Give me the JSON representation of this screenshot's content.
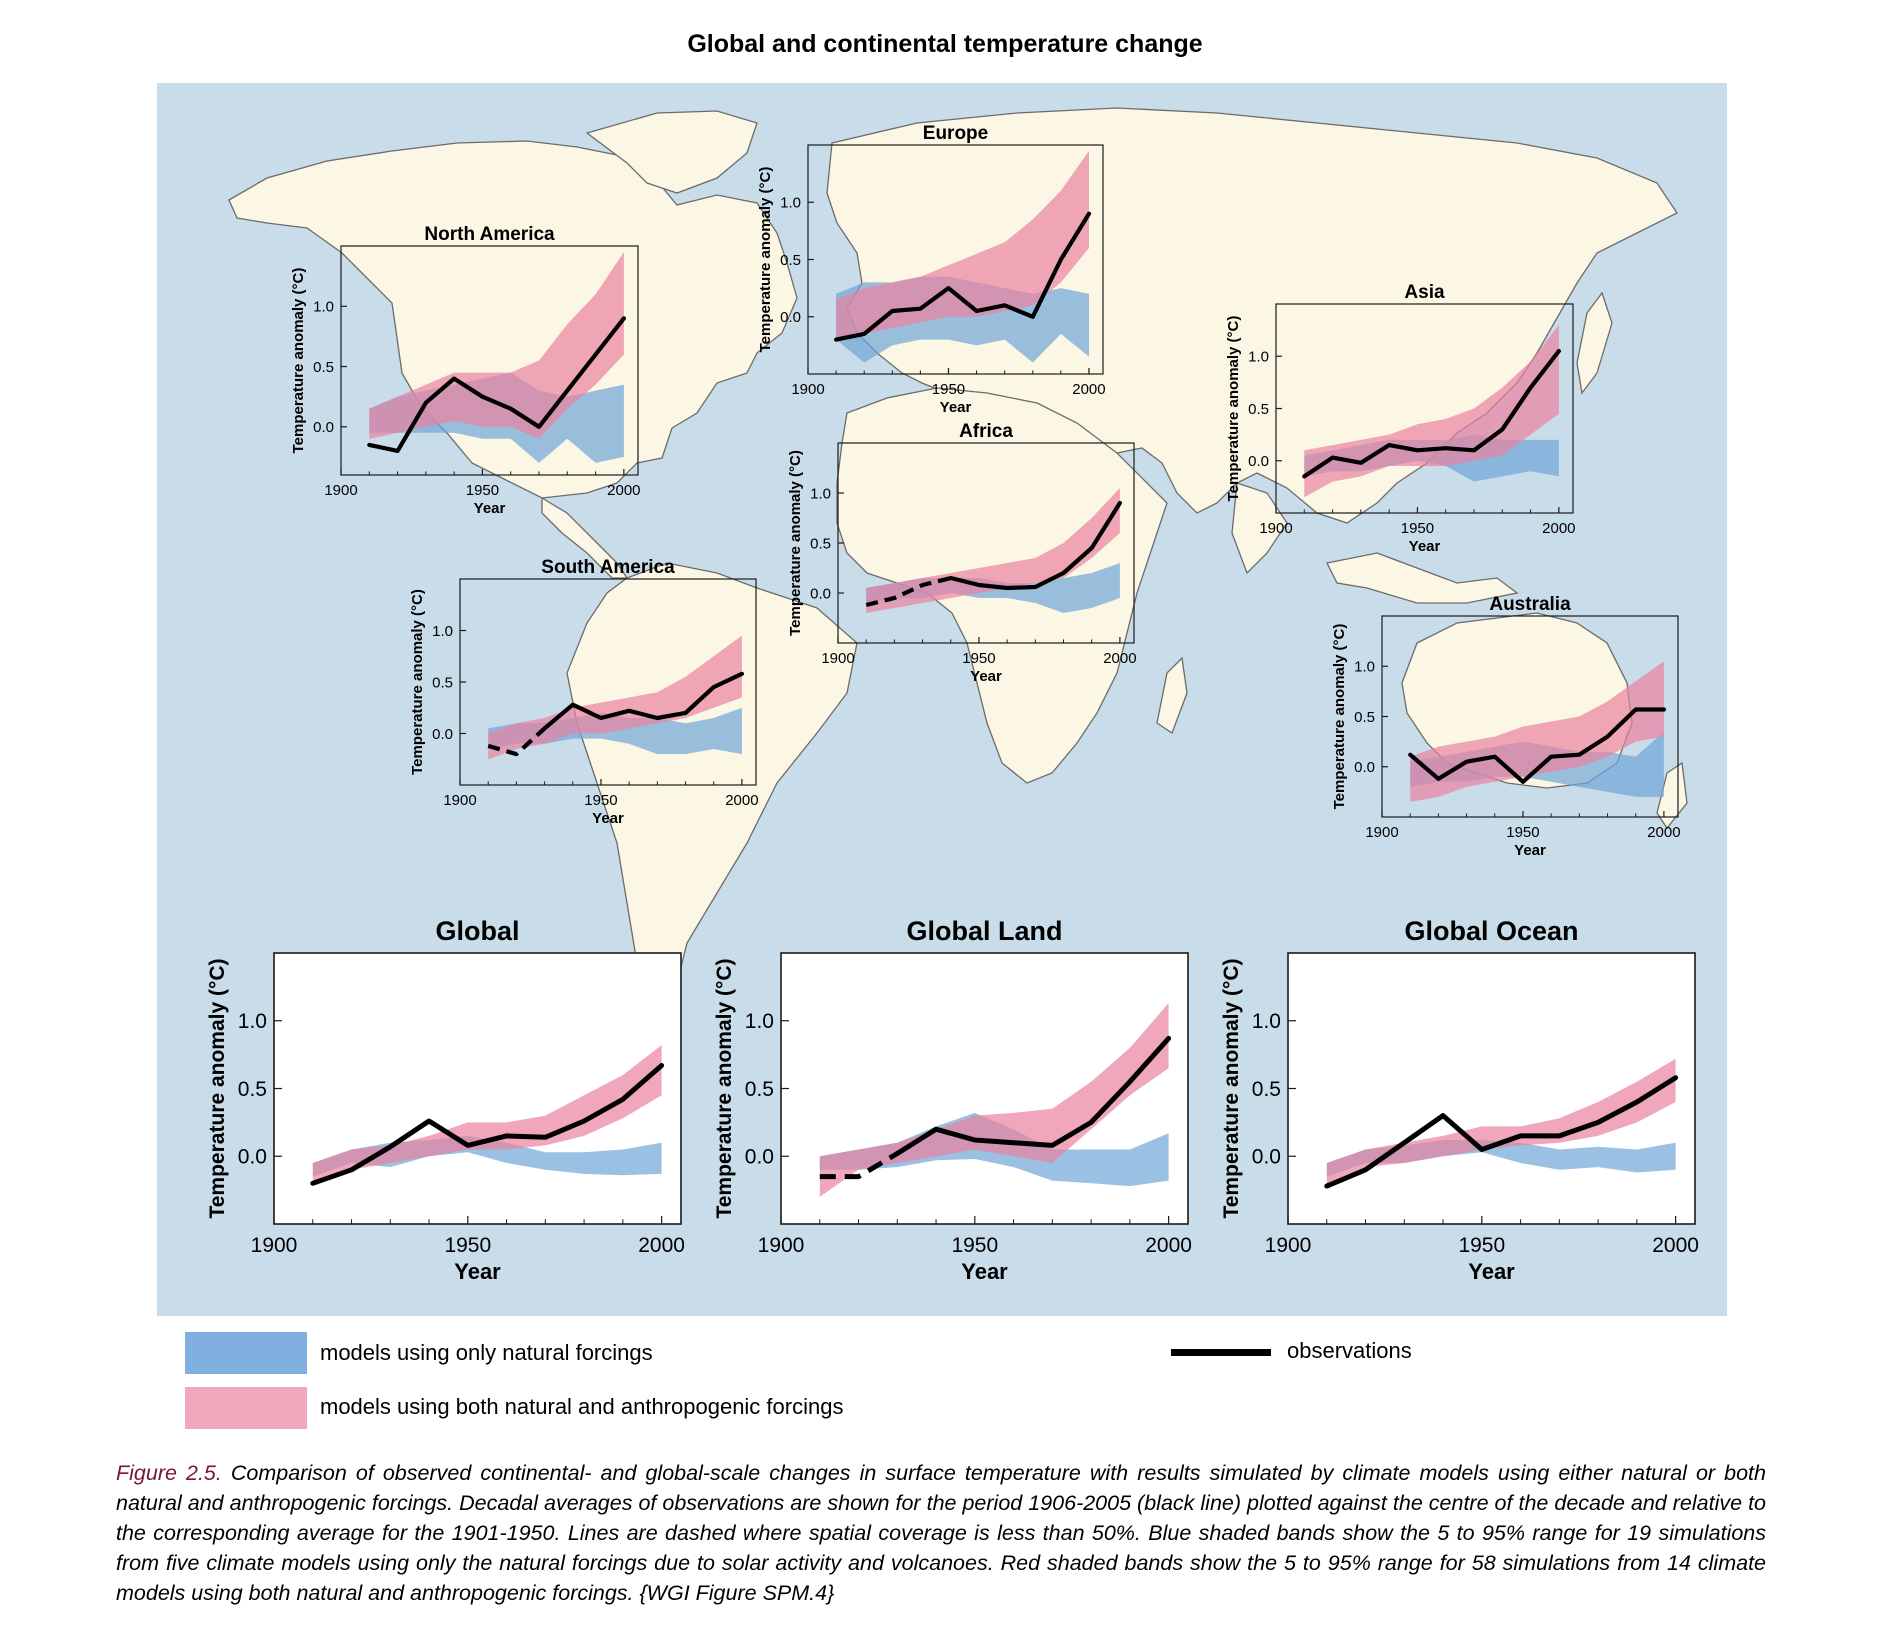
{
  "figure_title": "Global and continental temperature change",
  "colors": {
    "title": "#7a1537",
    "ocean": "#c9dcea",
    "land": "#fbf7e4",
    "natural_band": "#6fa5d9",
    "anthro_band": "#e9829e",
    "observations": "#000000"
  },
  "legend": {
    "natural": "models using only natural forcings",
    "anthro": "models using both natural and anthropogenic forcings",
    "observations": "observations"
  },
  "caption": {
    "label": "Figure 2.5.",
    "text": " Comparison of observed continental- and global-scale changes in surface temperature with results simulated by climate models using either natural or both natural and anthropogenic forcings. Decadal averages of observations are shown for the period 1906-2005 (black line) plotted against the centre of the decade and relative to the corresponding average for the 1901-1950. Lines are dashed where spatial coverage is less than 50%. Blue shaded bands show the 5 to 95% range for 19 simulations from five climate models using only the natural forcings due to solar activity and volcanoes. Red shaded bands show the 5 to 95% range for 58 simulations from 14 climate models using both natural and anthropogenic forcings. {WGI Figure SPM.4}"
  },
  "chart_data": [
    {
      "id": "north-america",
      "type": "area",
      "title": "North America",
      "xlabel": "Year",
      "ylabel": "Temperature anomaly (°C)",
      "xlim": [
        1900,
        2005
      ],
      "ylim": [
        -0.4,
        1.5
      ],
      "xticks": [
        "1900",
        "1950",
        "2000"
      ],
      "yticks": [
        "0.0",
        "0.5",
        "1.0"
      ],
      "x": [
        1910,
        1920,
        1930,
        1940,
        1950,
        1960,
        1970,
        1980,
        1990,
        2000
      ],
      "observations": [
        -0.15,
        -0.2,
        0.2,
        0.4,
        0.25,
        0.15,
        0.0,
        0.3,
        0.6,
        0.9
      ],
      "dashed_until": 1910,
      "natural": {
        "low": [
          -0.05,
          -0.05,
          -0.05,
          -0.05,
          -0.1,
          -0.1,
          -0.3,
          -0.1,
          -0.3,
          -0.25
        ],
        "high": [
          0.15,
          0.25,
          0.3,
          0.35,
          0.4,
          0.45,
          0.3,
          0.25,
          0.3,
          0.35
        ]
      },
      "anthro": {
        "low": [
          -0.1,
          -0.05,
          0.0,
          0.05,
          0.0,
          0.0,
          -0.1,
          0.15,
          0.35,
          0.6
        ],
        "high": [
          0.15,
          0.25,
          0.35,
          0.45,
          0.45,
          0.45,
          0.55,
          0.85,
          1.1,
          1.45
        ]
      }
    },
    {
      "id": "europe",
      "type": "area",
      "title": "Europe",
      "xlabel": "Year",
      "ylabel": "Temperature anomaly (°C)",
      "xlim": [
        1900,
        2005
      ],
      "ylim": [
        -0.5,
        1.5
      ],
      "xticks": [
        "1900",
        "1950",
        "2000"
      ],
      "yticks": [
        "0.0",
        "0.5",
        "1.0"
      ],
      "x": [
        1910,
        1920,
        1930,
        1940,
        1950,
        1960,
        1970,
        1980,
        1990,
        2000
      ],
      "observations": [
        -0.2,
        -0.15,
        0.05,
        0.07,
        0.25,
        0.05,
        0.1,
        0.0,
        0.5,
        0.9
      ],
      "dashed_until": 1910,
      "natural": {
        "low": [
          -0.2,
          -0.4,
          -0.25,
          -0.2,
          -0.2,
          -0.25,
          -0.2,
          -0.4,
          -0.15,
          -0.35
        ],
        "high": [
          0.2,
          0.3,
          0.3,
          0.35,
          0.35,
          0.3,
          0.25,
          0.2,
          0.25,
          0.2
        ]
      },
      "anthro": {
        "low": [
          -0.2,
          -0.15,
          -0.1,
          -0.05,
          0.0,
          0.0,
          0.05,
          0.1,
          0.3,
          0.6
        ],
        "high": [
          0.15,
          0.25,
          0.3,
          0.35,
          0.45,
          0.55,
          0.65,
          0.85,
          1.1,
          1.45
        ]
      }
    },
    {
      "id": "asia",
      "type": "area",
      "title": "Asia",
      "xlabel": "Year",
      "ylabel": "Temperature anomaly (°C)",
      "xlim": [
        1900,
        2005
      ],
      "ylim": [
        -0.5,
        1.5
      ],
      "xticks": [
        "1900",
        "1950",
        "2000"
      ],
      "yticks": [
        "0.0",
        "0.5",
        "1.0"
      ],
      "x": [
        1910,
        1920,
        1930,
        1940,
        1950,
        1960,
        1970,
        1980,
        1990,
        2000
      ],
      "observations": [
        -0.15,
        0.03,
        -0.02,
        0.15,
        0.1,
        0.12,
        0.1,
        0.3,
        0.7,
        1.05
      ],
      "dashed_until": 1910,
      "natural": {
        "low": [
          -0.15,
          -0.1,
          -0.1,
          -0.05,
          0.0,
          -0.05,
          -0.2,
          -0.15,
          -0.1,
          -0.15
        ],
        "high": [
          0.05,
          0.1,
          0.15,
          0.2,
          0.2,
          0.2,
          0.25,
          0.2,
          0.2,
          0.2
        ]
      },
      "anthro": {
        "low": [
          -0.35,
          -0.2,
          -0.15,
          -0.05,
          -0.05,
          -0.05,
          0.0,
          0.05,
          0.25,
          0.45
        ],
        "high": [
          0.1,
          0.15,
          0.2,
          0.25,
          0.35,
          0.4,
          0.5,
          0.7,
          0.95,
          1.3
        ]
      }
    },
    {
      "id": "africa",
      "type": "area",
      "title": "Africa",
      "xlabel": "Year",
      "ylabel": "Temperature anomaly (°C)",
      "xlim": [
        1900,
        2005
      ],
      "ylim": [
        -0.5,
        1.5
      ],
      "xticks": [
        "1900",
        "1950",
        "2000"
      ],
      "yticks": [
        "0.0",
        "0.5",
        "1.0"
      ],
      "x": [
        1910,
        1920,
        1930,
        1940,
        1950,
        1960,
        1970,
        1980,
        1990,
        2000
      ],
      "observations": [
        -0.12,
        -0.05,
        0.08,
        0.15,
        0.08,
        0.05,
        0.06,
        0.2,
        0.45,
        0.9
      ],
      "dashed_until": 1940,
      "natural": {
        "low": [
          -0.1,
          -0.05,
          -0.05,
          0.0,
          -0.05,
          -0.05,
          -0.1,
          -0.2,
          -0.15,
          -0.05
        ],
        "high": [
          0.05,
          0.1,
          0.15,
          0.15,
          0.15,
          0.1,
          0.1,
          0.15,
          0.2,
          0.3
        ]
      },
      "anthro": {
        "low": [
          -0.2,
          -0.15,
          -0.1,
          -0.05,
          0.0,
          0.05,
          0.1,
          0.15,
          0.35,
          0.6
        ],
        "high": [
          0.05,
          0.1,
          0.15,
          0.2,
          0.25,
          0.3,
          0.35,
          0.5,
          0.75,
          1.05
        ]
      }
    },
    {
      "id": "south-america",
      "type": "area",
      "title": "South America",
      "xlabel": "Year",
      "ylabel": "Temperature anomaly (°C)",
      "xlim": [
        1900,
        2005
      ],
      "ylim": [
        -0.5,
        1.5
      ],
      "xticks": [
        "1900",
        "1950",
        "2000"
      ],
      "yticks": [
        "0.0",
        "0.5",
        "1.0"
      ],
      "x": [
        1910,
        1920,
        1930,
        1940,
        1950,
        1960,
        1970,
        1980,
        1990,
        2000
      ],
      "observations": [
        -0.12,
        -0.2,
        0.05,
        0.28,
        0.15,
        0.22,
        0.15,
        0.2,
        0.45,
        0.58
      ],
      "dashed_until": 1930,
      "natural": {
        "low": [
          -0.15,
          -0.1,
          -0.1,
          -0.05,
          -0.05,
          -0.1,
          -0.2,
          -0.2,
          -0.15,
          -0.2
        ],
        "high": [
          0.05,
          0.1,
          0.1,
          0.15,
          0.2,
          0.15,
          0.15,
          0.1,
          0.15,
          0.25
        ]
      },
      "anthro": {
        "low": [
          -0.25,
          -0.15,
          -0.1,
          0.0,
          0.0,
          0.05,
          0.1,
          0.15,
          0.25,
          0.35
        ],
        "high": [
          0.0,
          0.1,
          0.15,
          0.25,
          0.3,
          0.35,
          0.4,
          0.55,
          0.75,
          0.95
        ]
      }
    },
    {
      "id": "australia",
      "type": "area",
      "title": "Australia",
      "xlabel": "Year",
      "ylabel": "Temperature anomaly (°C)",
      "xlim": [
        1900,
        2005
      ],
      "ylim": [
        -0.5,
        1.5
      ],
      "xticks": [
        "1900",
        "1950",
        "2000"
      ],
      "yticks": [
        "0.0",
        "0.5",
        "1.0"
      ],
      "x": [
        1910,
        1920,
        1930,
        1940,
        1950,
        1960,
        1970,
        1980,
        1990,
        2000
      ],
      "observations": [
        0.12,
        -0.12,
        0.05,
        0.1,
        -0.15,
        0.1,
        0.12,
        0.3,
        0.57,
        0.57
      ],
      "dashed_until": 1910,
      "natural": {
        "low": [
          -0.2,
          -0.15,
          -0.15,
          -0.1,
          -0.1,
          -0.15,
          -0.2,
          -0.25,
          -0.3,
          -0.3
        ],
        "high": [
          0.05,
          0.1,
          0.15,
          0.2,
          0.25,
          0.2,
          0.15,
          0.15,
          0.1,
          0.35
        ]
      },
      "anthro": {
        "low": [
          -0.35,
          -0.3,
          -0.2,
          -0.15,
          -0.1,
          -0.05,
          0.0,
          0.1,
          0.25,
          0.3
        ],
        "high": [
          0.1,
          0.2,
          0.25,
          0.3,
          0.4,
          0.45,
          0.5,
          0.65,
          0.85,
          1.05
        ]
      }
    },
    {
      "id": "global",
      "type": "area",
      "title": "Global",
      "xlabel": "Year",
      "ylabel": "Temperature anomaly (°C)",
      "xlim": [
        1900,
        2005
      ],
      "ylim": [
        -0.5,
        1.5
      ],
      "xticks": [
        "1900",
        "1950",
        "2000"
      ],
      "yticks": [
        "0.0",
        "0.5",
        "1.0"
      ],
      "x": [
        1910,
        1920,
        1930,
        1940,
        1950,
        1960,
        1970,
        1980,
        1990,
        2000
      ],
      "observations": [
        -0.2,
        -0.1,
        0.07,
        0.26,
        0.08,
        0.15,
        0.14,
        0.26,
        0.42,
        0.67
      ],
      "dashed_until": 1910,
      "natural": {
        "low": [
          -0.15,
          -0.05,
          -0.08,
          0.0,
          0.03,
          -0.05,
          -0.1,
          -0.13,
          -0.14,
          -0.13
        ],
        "high": [
          -0.05,
          0.05,
          0.1,
          0.12,
          0.15,
          0.1,
          0.03,
          0.03,
          0.05,
          0.1
        ]
      },
      "anthro": {
        "low": [
          -0.2,
          -0.1,
          -0.05,
          0.0,
          0.05,
          0.05,
          0.08,
          0.15,
          0.28,
          0.45
        ],
        "high": [
          -0.05,
          0.05,
          0.08,
          0.15,
          0.25,
          0.25,
          0.3,
          0.45,
          0.6,
          0.82
        ]
      }
    },
    {
      "id": "global-land",
      "type": "area",
      "title": "Global Land",
      "xlabel": "Year",
      "ylabel": "Temperature anomaly (°C)",
      "xlim": [
        1900,
        2005
      ],
      "ylim": [
        -0.5,
        1.5
      ],
      "xticks": [
        "1900",
        "1950",
        "2000"
      ],
      "yticks": [
        "0.0",
        "0.5",
        "1.0"
      ],
      "x": [
        1910,
        1920,
        1930,
        1940,
        1950,
        1960,
        1970,
        1980,
        1990,
        2000
      ],
      "observations": [
        -0.15,
        -0.15,
        0.02,
        0.2,
        0.12,
        0.1,
        0.08,
        0.25,
        0.55,
        0.87
      ],
      "dashed_until": 1930,
      "natural": {
        "low": [
          -0.1,
          -0.1,
          -0.08,
          -0.03,
          -0.02,
          -0.08,
          -0.18,
          -0.2,
          -0.22,
          -0.18
        ],
        "high": [
          0.0,
          0.05,
          0.1,
          0.22,
          0.32,
          0.2,
          0.05,
          0.05,
          0.05,
          0.17
        ]
      },
      "anthro": {
        "low": [
          -0.3,
          -0.1,
          -0.05,
          0.0,
          0.05,
          0.0,
          -0.05,
          0.2,
          0.45,
          0.65
        ],
        "high": [
          0.0,
          0.05,
          0.1,
          0.2,
          0.3,
          0.32,
          0.35,
          0.55,
          0.8,
          1.13
        ]
      }
    },
    {
      "id": "global-ocean",
      "type": "area",
      "title": "Global Ocean",
      "xlabel": "Year",
      "ylabel": "Temperature anomaly (°C)",
      "xlim": [
        1900,
        2005
      ],
      "ylim": [
        -0.5,
        1.5
      ],
      "xticks": [
        "1900",
        "1950",
        "2000"
      ],
      "yticks": [
        "0.0",
        "0.5",
        "1.0"
      ],
      "x": [
        1910,
        1920,
        1930,
        1940,
        1950,
        1960,
        1970,
        1980,
        1990,
        2000
      ],
      "observations": [
        -0.22,
        -0.1,
        0.1,
        0.3,
        0.05,
        0.15,
        0.15,
        0.25,
        0.4,
        0.58
      ],
      "dashed_until": 1910,
      "natural": {
        "low": [
          -0.15,
          -0.05,
          -0.05,
          0.0,
          0.03,
          -0.05,
          -0.1,
          -0.08,
          -0.12,
          -0.1
        ],
        "high": [
          -0.05,
          0.05,
          0.08,
          0.12,
          0.12,
          0.1,
          0.05,
          0.07,
          0.05,
          0.1
        ]
      },
      "anthro": {
        "low": [
          -0.2,
          -0.08,
          -0.05,
          0.0,
          0.05,
          0.08,
          0.1,
          0.15,
          0.25,
          0.4
        ],
        "high": [
          -0.05,
          0.05,
          0.1,
          0.15,
          0.22,
          0.22,
          0.28,
          0.4,
          0.55,
          0.72
        ]
      }
    }
  ]
}
